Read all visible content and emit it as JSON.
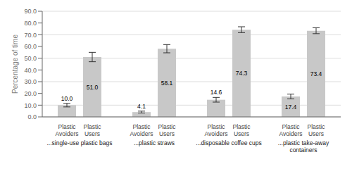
{
  "chart_data": {
    "type": "bar",
    "categories": [
      "...single-use plastic bags",
      "...plastic straws",
      "...disposable coffee cups",
      "...plastic take-away\ncontainers"
    ],
    "series": [
      {
        "name": "Plastic\nAvoiders",
        "color": "#c8c8c8",
        "values": [
          10.0,
          4.1,
          14.6,
          17.4
        ],
        "value_labels": [
          "10.0",
          "4.1",
          "14.6",
          "17.4"
        ],
        "errors": [
          1.5,
          0.8,
          2.0,
          2.0
        ]
      },
      {
        "name": "Plastic\nUsers",
        "color": "#c8c8c8",
        "values": [
          51.0,
          58.1,
          74.3,
          73.4
        ],
        "value_labels": [
          "51.0",
          "58.1",
          "74.3",
          "73.4"
        ],
        "errors": [
          4.0,
          3.5,
          2.5,
          2.5
        ]
      }
    ],
    "ylabel": "Percentage of time",
    "ylim": [
      0,
      90
    ],
    "yticks": [
      {
        "value": 0,
        "label": "0.0"
      },
      {
        "value": 10,
        "label": "10.0"
      },
      {
        "value": 20,
        "label": "20.0"
      },
      {
        "value": 30,
        "label": "30.0"
      },
      {
        "value": 40,
        "label": "40.0"
      },
      {
        "value": 50,
        "label": "50.0"
      },
      {
        "value": 60,
        "label": "60.0"
      },
      {
        "value": 70,
        "label": "70.0"
      },
      {
        "value": 80,
        "label": "80.0"
      },
      {
        "value": 90,
        "label": "90.0"
      }
    ],
    "grid": true,
    "data_labels": true
  }
}
